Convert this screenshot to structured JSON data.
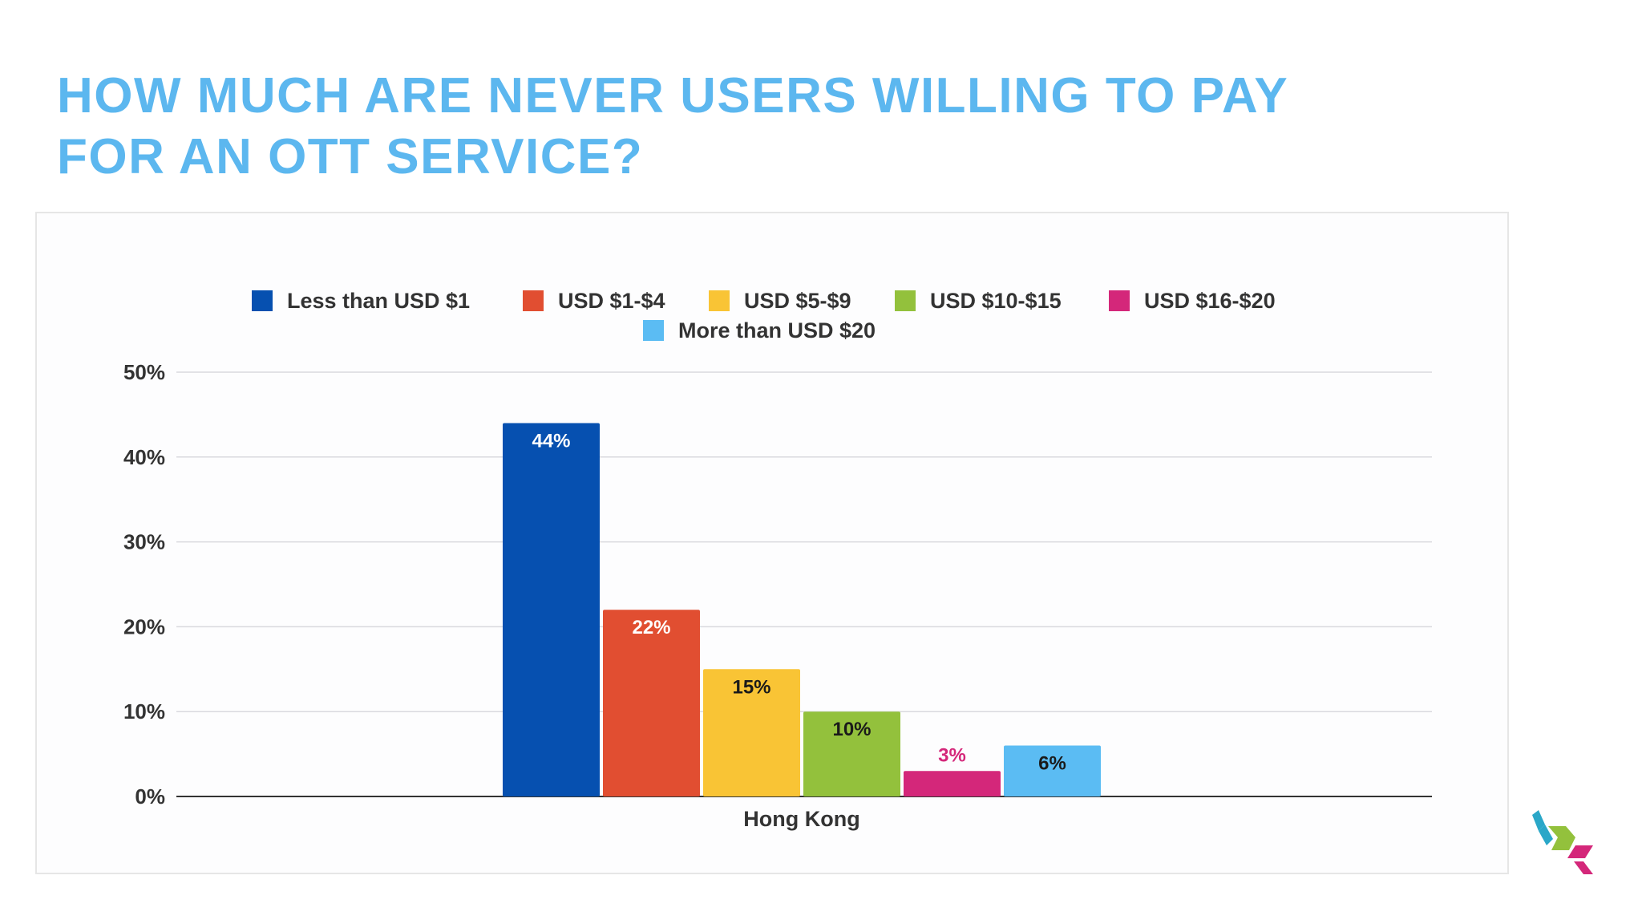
{
  "title": {
    "line1": "HOW MUCH ARE NEVER USERS WILLING TO PAY",
    "line2": "FOR AN OTT SERVICE?"
  },
  "chart_data": {
    "type": "bar",
    "categories": [
      "Hong Kong"
    ],
    "series": [
      {
        "name": "Less than USD $1",
        "values": [
          44
        ],
        "label": "44%",
        "color": "#0650b0",
        "label_color": "#ffffff"
      },
      {
        "name": "USD $1-$4",
        "values": [
          22
        ],
        "label": "22%",
        "color": "#e14e31",
        "label_color": "#ffffff"
      },
      {
        "name": "USD $5-$9",
        "values": [
          15
        ],
        "label": "15%",
        "color": "#f9c435",
        "label_color": "#1a1a1a"
      },
      {
        "name": "USD $10-$15",
        "values": [
          10
        ],
        "label": "10%",
        "color": "#93c13c",
        "label_color": "#1a1a1a"
      },
      {
        "name": "USD $16-$20",
        "values": [
          3
        ],
        "label": "3%",
        "color": "#d4277a",
        "label_color": "#d4277a"
      },
      {
        "name": "More than USD $20",
        "values": [
          6
        ],
        "label": "6%",
        "color": "#5bbcf3",
        "label_color": "#1a1a1a"
      }
    ],
    "yticks": [
      "0%",
      "10%",
      "20%",
      "30%",
      "40%",
      "50%"
    ],
    "ylim": [
      0,
      50
    ],
    "grid": true,
    "legend": "top"
  },
  "logo": {
    "colors": [
      "#2aa7c8",
      "#93c13c",
      "#d4277a"
    ]
  }
}
